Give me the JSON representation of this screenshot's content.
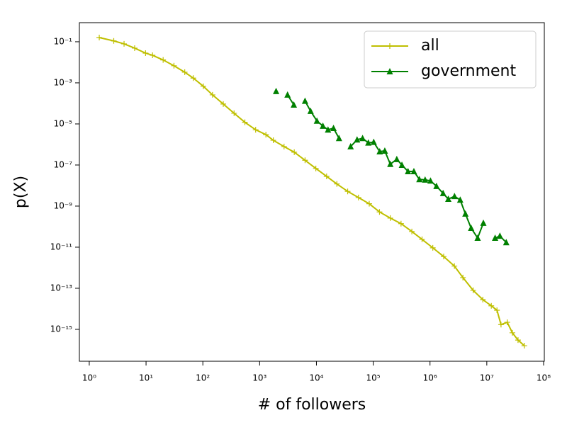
{
  "chart_data": {
    "type": "line",
    "xlabel": "# of followers",
    "ylabel": "p(X)",
    "xscale": "log",
    "yscale": "log",
    "legend": "upper right",
    "xlim": [
      0.67,
      103000000.0
    ],
    "ylim": [
      2.8e-17,
      0.85
    ],
    "xticks": [
      {
        "value": 1,
        "label": "10⁰"
      },
      {
        "value": 10,
        "label": "10¹"
      },
      {
        "value": 100,
        "label": "10²"
      },
      {
        "value": 1000,
        "label": "10³"
      },
      {
        "value": 10000,
        "label": "10⁴"
      },
      {
        "value": 100000,
        "label": "10⁵"
      },
      {
        "value": 1000000,
        "label": "10⁶"
      },
      {
        "value": 10000000,
        "label": "10⁷"
      },
      {
        "value": 100000000,
        "label": "10⁸"
      }
    ],
    "yticks": [
      {
        "value": 0.1,
        "label": "10⁻¹"
      },
      {
        "value": 0.001,
        "label": "10⁻³"
      },
      {
        "value": 1e-05,
        "label": "10⁻⁵"
      },
      {
        "value": 1e-07,
        "label": "10⁻⁷"
      },
      {
        "value": 1e-09,
        "label": "10⁻⁹"
      },
      {
        "value": 1e-11,
        "label": "10⁻¹¹"
      },
      {
        "value": 1e-13,
        "label": "10⁻¹³"
      },
      {
        "value": 1e-15,
        "label": "10⁻¹⁵"
      }
    ],
    "series": [
      {
        "name": "all",
        "color": "#bfbf00",
        "marker": "plus",
        "x": [
          1.5,
          2.7,
          4.1,
          6.3,
          9.8,
          13,
          20,
          31,
          48,
          68,
          102,
          148,
          229,
          355,
          550,
          851,
          1290,
          1740,
          2690,
          4070,
          6310,
          9770,
          15100,
          22900,
          35500,
          55000,
          85100,
          129000,
          200000,
          309000,
          479000,
          724000,
          1120000,
          1740000,
          2690000,
          3800000,
          5750000,
          8510000,
          12000000,
          15100000,
          17800000,
          22900000,
          28200000,
          35500000,
          45700000
        ],
        "values": [
          0.16,
          0.11,
          0.079,
          0.049,
          0.028,
          0.022,
          0.013,
          0.0068,
          0.0033,
          0.0017,
          0.00068,
          0.00026,
          9.3e-05,
          3.3e-05,
          1.2e-05,
          5.2e-06,
          3e-06,
          1.6e-06,
          7.9e-07,
          4.2e-07,
          1.7e-07,
          6.8e-08,
          2.8e-08,
          1.2e-08,
          5.2e-09,
          2.6e-09,
          1.3e-09,
          5.2e-10,
          2.6e-10,
          1.4e-10,
          5.8e-11,
          2.4e-11,
          9.3e-12,
          3.5e-12,
          1.2e-12,
          3.3e-13,
          7.9e-14,
          2.8e-14,
          1.4e-14,
          8.5e-15,
          1.7e-15,
          2.2e-15,
          6.8e-16,
          3e-16,
          1.6e-16
        ]
      },
      {
        "name": "government",
        "color": "#008000",
        "marker": "triangle",
        "x": [
          1950,
          null,
          3100,
          4000,
          null,
          6300,
          7900,
          10200,
          13000,
          16000,
          20000,
          25000,
          null,
          40000,
          52000,
          65000,
          82000,
          102000,
          130000,
          160000,
          200000,
          260000,
          320000,
          410000,
          520000,
          650000,
          820000,
          1020000,
          1300000,
          1700000,
          2100000,
          2700000,
          3400000,
          4200000,
          5300000,
          6900000,
          8700000,
          null,
          14000000,
          17000000,
          22000000
        ],
        "values": [
          0.00039,
          null,
          0.00026,
          8.5e-05,
          null,
          0.00013,
          4.2e-05,
          1.4e-05,
          7.9e-06,
          5.2e-06,
          6.2e-06,
          2e-06,
          null,
          7.9e-07,
          1.7e-06,
          2e-06,
          1.2e-06,
          1.3e-06,
          4.5e-07,
          4.9e-07,
          1.1e-07,
          1.9e-07,
          1e-07,
          4.9e-08,
          4.9e-08,
          2e-08,
          1.9e-08,
          1.7e-08,
          9.3e-09,
          4.2e-09,
          2.2e-09,
          3e-09,
          2e-09,
          4.2e-10,
          8.5e-11,
          2.8e-11,
          1.5e-10,
          null,
          2.8e-11,
          3.5e-11,
          1.7e-11
        ]
      }
    ]
  }
}
